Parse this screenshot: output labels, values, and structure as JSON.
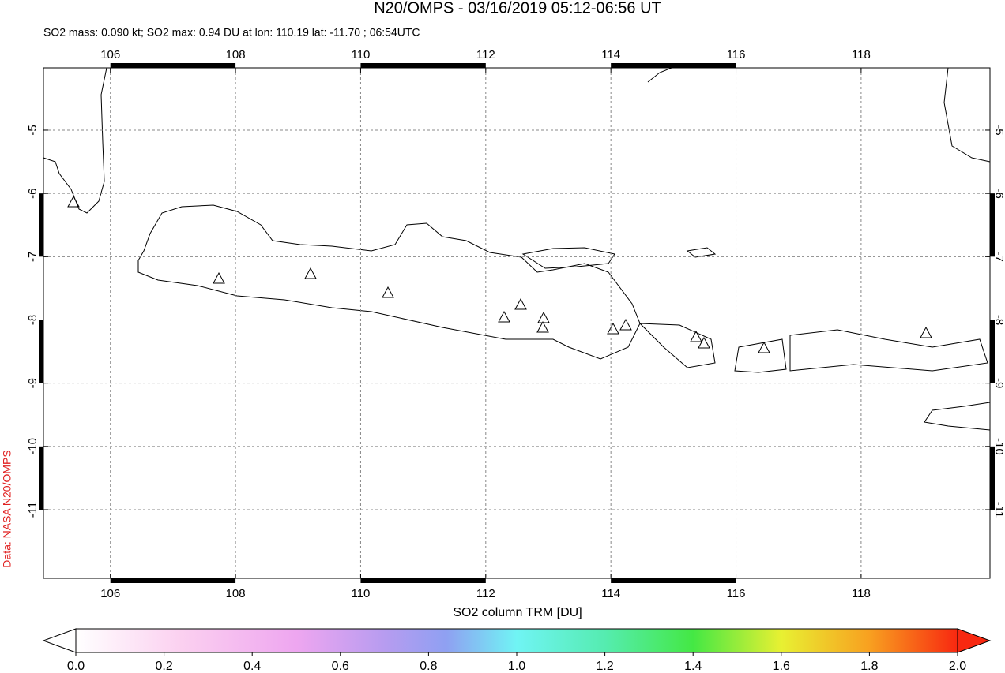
{
  "title": "N20/OMPS - 03/16/2019 05:12-06:56 UT",
  "subtitle": "SO2 mass: 0.090 kt; SO2 max: 0.94 DU at lon: 110.19 lat: -11.70 ; 06:54UTC",
  "credit": "Data: NASA N20/OMPS",
  "map": {
    "xlim": [
      104.93,
      120.06
    ],
    "ylim": [
      -12.085,
      -4.015
    ],
    "xticks": [
      106,
      108,
      110,
      112,
      114,
      116,
      118
    ],
    "yticks": [
      -5,
      -6,
      -7,
      -8,
      -9,
      -10,
      -11
    ],
    "grid": true
  },
  "colorbar": {
    "label": "SO2 column TRM [DU]",
    "lim": [
      0,
      2
    ],
    "ticks": [
      {
        "value": 0,
        "label": "0.0"
      },
      {
        "value": 0.2,
        "label": "0.2"
      },
      {
        "value": 0.4,
        "label": "0.4"
      },
      {
        "value": 0.6,
        "label": "0.6"
      },
      {
        "value": 0.8,
        "label": "0.8"
      },
      {
        "value": 1,
        "label": "1.0"
      },
      {
        "value": 1.2,
        "label": "1.2"
      },
      {
        "value": 1.4,
        "label": "1.4"
      },
      {
        "value": 1.6,
        "label": "1.6"
      },
      {
        "value": 1.8,
        "label": "1.8"
      },
      {
        "value": 2,
        "label": "2.0"
      }
    ]
  }
}
